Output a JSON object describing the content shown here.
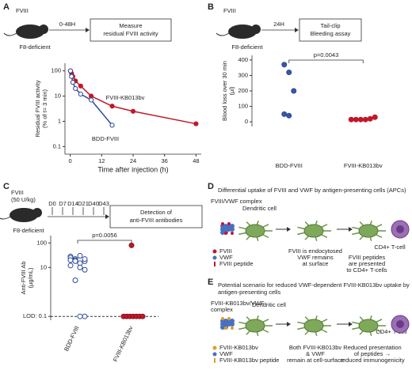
{
  "panels": {
    "A": "A",
    "B": "B",
    "C": "C"
  },
  "schemes": [
    {
      "drug": [
        "FVIII"
      ],
      "time": "0-48H",
      "box": [
        "Measure",
        "residual FVIII activity"
      ],
      "mouse": "F8-deficient"
    },
    {
      "drug": [
        "FVIII"
      ],
      "time": "24H",
      "box": [
        "Tail-clip",
        "Bleeding assay"
      ],
      "mouse": "F8-deficient"
    },
    {
      "drug": [
        "FVIII",
        "(50 U/kg)"
      ],
      "days": [
        "D0",
        "D7",
        "D14",
        "D21",
        "D40",
        "D43"
      ],
      "box": [
        "Detection of",
        "anti-FVIII antibodies"
      ],
      "mouse": "F8-deficient"
    }
  ],
  "chart_data": [
    {
      "type": "line",
      "log_y": true,
      "ylabel": [
        "Residual FVIII activity",
        "(% of t= 3 min)"
      ],
      "xlabel": "Time after injection (h)",
      "xlim": [
        -2,
        50
      ],
      "xticks": [
        0,
        12,
        24,
        36,
        48
      ],
      "ylim": [
        0.05,
        200
      ],
      "yticks": [
        100,
        10,
        1,
        0.1
      ],
      "series": [
        {
          "name": "FVIII-KB013bv",
          "color": "#c0182a",
          "fill": "#c0182a",
          "x": [
            0.1,
            0.5,
            1,
            2,
            4,
            8,
            16,
            24,
            48
          ],
          "values": [
            100,
            80,
            60,
            40,
            25,
            10,
            4,
            2.5,
            0.8
          ]
        },
        {
          "name": "BDD-FVIII",
          "color": "#2b4a9a",
          "fill": "#ffffff",
          "x": [
            0.1,
            0.5,
            1,
            2,
            4,
            8,
            16
          ],
          "values": [
            100,
            60,
            35,
            20,
            12,
            7,
            0.7
          ]
        }
      ]
    },
    {
      "type": "dot",
      "ylabel": [
        "Blood loss over 30 min",
        "(µl)"
      ],
      "ylim": [
        -30,
        430
      ],
      "yticks": [
        0,
        100,
        200,
        300,
        400
      ],
      "categories": [
        "BDD-FVIII",
        "FVIII-KB013bv"
      ],
      "groups": [
        {
          "color": "#2b4a9a",
          "fill": "#3a56a8",
          "values": [
            370,
            320,
            200,
            50,
            40
          ]
        },
        {
          "color": "#c0182a",
          "fill": "#c0182a",
          "values": [
            15,
            15,
            15,
            15,
            20,
            30
          ]
        }
      ],
      "annotation": "p=0.0043"
    },
    {
      "type": "dot",
      "log_y": true,
      "ylabel": [
        "Anti-FVIII Ab",
        "(µg/mL)"
      ],
      "ylim": [
        0.07,
        200
      ],
      "yticks": [
        100,
        10,
        {
          "value": 0.1,
          "label": "LOD: 0.1"
        }
      ],
      "categories": [
        "BDD-FVIII",
        "FVIII-KB013bv"
      ],
      "groups": [
        {
          "color": "#2b4a9a",
          "fill": "#ffffff",
          "values": [
            28,
            22,
            30,
            18,
            25,
            20,
            15,
            22,
            12,
            18,
            10,
            8,
            20,
            3,
            0.1,
            0.1
          ]
        },
        {
          "color": "#8a0f1c",
          "fill": "#c0182a",
          "values": [
            80,
            0.1,
            0.1,
            0.1,
            0.1,
            0.1,
            0.1,
            0.1
          ]
        }
      ],
      "annotation": "p=0.0056"
    }
  ],
  "diagrams": {
    "D": {
      "label": "D",
      "title": "Differential uptake of  FVIII and VWF by antigen-presenting cells (APCs)",
      "complex": [
        "FVIII/VWF complex"
      ],
      "cell": "Dendritic cell",
      "legend": [
        "FVIII",
        "VWF",
        "FVIII peptide"
      ],
      "step2": [
        "FVIII is endocytosed",
        "VWF remains",
        "at surface"
      ],
      "step3": [
        "FVIII peptides",
        "are presented",
        "to CD4+ T-cells"
      ],
      "tcell": "CD4+ T-cell"
    },
    "E": {
      "label": "E",
      "title": [
        "Potential scenario for reduced VWF-dependent FVIII-KB013bv uptake by",
        "antigen-presenting cells"
      ],
      "complex": [
        "FVIII-KB013bv/VWF",
        "complex"
      ],
      "cell": "Dendritic cell",
      "legend": [
        "FVIII-KB013bv",
        "VWF",
        "FVIII-KB013bv peptide"
      ],
      "step2": [
        "Both FVIII-KB013bv",
        "& VWF",
        "remain at cell-surface"
      ],
      "step3": [
        "Reduced presentation",
        "of peptides →",
        "reduced immunogenicity"
      ],
      "tcell": "CD4+ T-cell"
    }
  }
}
